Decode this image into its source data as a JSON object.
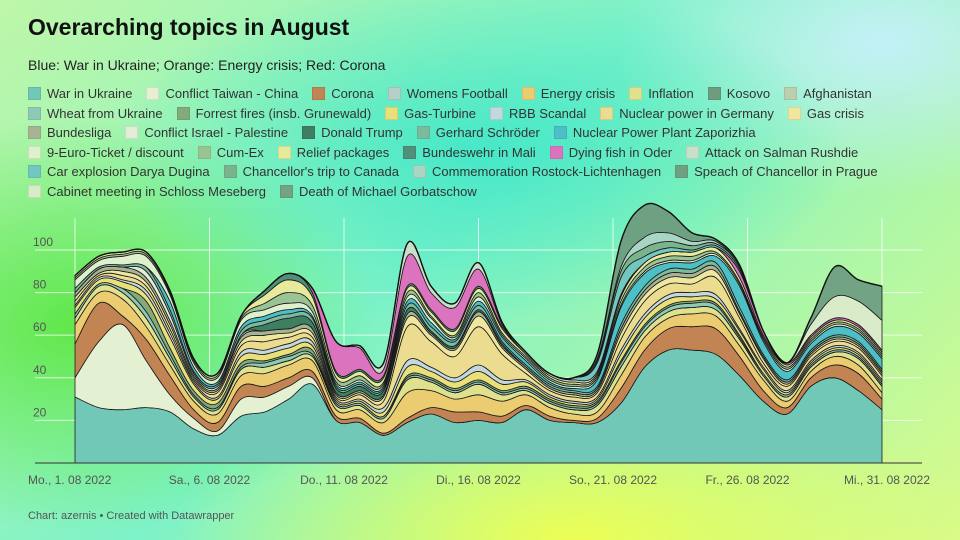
{
  "title": "Overarching topics in August",
  "subtitle": "Blue: War in Ukraine; Orange: Energy crisis; Red: Corona",
  "source": "Chart: azernis • Created with Datawrapper",
  "chart_data": {
    "type": "area",
    "stacked": true,
    "x_labels": [
      "Mo., 1. 08 2022",
      "Sa., 6. 08 2022",
      "Do., 11. 08 2022",
      "Di., 16. 08 2022",
      "So., 21. 08 2022",
      "Fr., 26. 08 2022",
      "Mi., 31. 08 2022"
    ],
    "y_ticks": [
      20,
      40,
      60,
      80,
      100
    ],
    "ylim": [
      0,
      115
    ],
    "grid": true,
    "legend_position": "top",
    "series": [
      {
        "name": "War in Ukraine",
        "color": "#72c8b6",
        "values": [
          31,
          26,
          25,
          26,
          24,
          16,
          13,
          22,
          24,
          30,
          37,
          20,
          19,
          13,
          19,
          23,
          19,
          20,
          19,
          25,
          20,
          19,
          19,
          28,
          45,
          53,
          53,
          51,
          41,
          29,
          23,
          36,
          40,
          34,
          25
        ]
      },
      {
        "name": "Conflict Taiwan - China",
        "color": "#e4f0d2",
        "values": [
          9,
          31,
          40,
          22,
          8,
          5,
          2,
          8,
          7,
          6,
          3,
          0,
          0,
          0,
          0,
          0,
          0,
          0,
          0,
          0,
          0,
          0,
          0,
          0,
          0,
          0,
          0,
          0,
          0,
          0,
          0,
          0,
          0,
          0,
          0
        ]
      },
      {
        "name": "Corona",
        "color": "#c38454",
        "values": [
          16,
          18,
          4,
          10,
          9,
          4,
          4,
          6,
          5,
          4,
          3,
          2,
          2,
          1,
          2,
          3,
          5,
          4,
          3,
          2,
          2,
          1,
          2,
          7,
          8,
          10,
          11,
          12,
          9,
          5,
          3,
          4,
          6,
          8,
          5
        ]
      },
      {
        "name": "Womens Football",
        "color": "#b5cfc9",
        "values": [
          0,
          0,
          0,
          0,
          0,
          0,
          0,
          0,
          0,
          0,
          0,
          0,
          0,
          0,
          0,
          0,
          0,
          0,
          0,
          0,
          0,
          0,
          0,
          0,
          0,
          0,
          0,
          0,
          0,
          0,
          0,
          0,
          0,
          0,
          0
        ]
      },
      {
        "name": "Energy crisis",
        "color": "#eccc70",
        "values": [
          9,
          5,
          8,
          6,
          5,
          4,
          4,
          5,
          6,
          6,
          5,
          3,
          4,
          5,
          12,
          8,
          6,
          8,
          7,
          5,
          4,
          3,
          3,
          6,
          6,
          5,
          6,
          6,
          5,
          5,
          3,
          3,
          4,
          4,
          3
        ]
      },
      {
        "name": "Inflation",
        "color": "#dfe18e",
        "values": [
          3,
          3,
          3,
          4,
          3,
          2,
          2,
          3,
          3,
          2,
          2,
          2,
          2,
          2,
          6,
          4,
          3,
          5,
          3,
          2,
          2,
          2,
          3,
          4,
          3,
          3,
          3,
          3,
          3,
          2,
          2,
          2,
          2,
          3,
          3
        ]
      },
      {
        "name": "Kosovo",
        "color": "#6e9d7d",
        "values": [
          0,
          0,
          0,
          0,
          0,
          0,
          0,
          0,
          0,
          0,
          0,
          0,
          0,
          0,
          0,
          0,
          0,
          0,
          0,
          0,
          0,
          0,
          0,
          0,
          0,
          0,
          0,
          0,
          0,
          0,
          0,
          0,
          0,
          0,
          0
        ]
      },
      {
        "name": "Afghanistan",
        "color": "#b9cfae",
        "values": [
          0,
          0,
          0,
          0,
          0,
          0,
          0,
          0,
          0,
          0,
          0,
          0,
          0,
          0,
          0,
          0,
          0,
          0,
          0,
          0,
          0,
          0,
          0,
          0,
          0,
          0,
          0,
          0,
          0,
          0,
          0,
          0,
          0,
          0,
          0
        ]
      },
      {
        "name": "Wheat from Ukraine",
        "color": "#8ccab5",
        "values": [
          2,
          1,
          2,
          3,
          2,
          1,
          1,
          1,
          2,
          2,
          1,
          1,
          1,
          1,
          1,
          1,
          1,
          1,
          1,
          1,
          1,
          1,
          1,
          2,
          2,
          2,
          2,
          2,
          1,
          1,
          1,
          1,
          1,
          1,
          1
        ]
      },
      {
        "name": "Forrest fires (insb. Grunewald)",
        "color": "#82aa7a",
        "values": [
          0,
          0,
          0,
          5,
          3,
          2,
          2,
          2,
          1,
          1,
          2,
          0,
          0,
          0,
          1,
          1,
          1,
          1,
          1,
          1,
          1,
          1,
          1,
          1,
          1,
          1,
          1,
          1,
          1,
          0,
          0,
          0,
          0,
          0,
          0
        ]
      },
      {
        "name": "Gas-Turbine",
        "color": "#e9e07c",
        "values": [
          3,
          2,
          3,
          3,
          5,
          3,
          2,
          3,
          3,
          3,
          2,
          1,
          1,
          2,
          4,
          3,
          3,
          4,
          3,
          2,
          1,
          1,
          1,
          3,
          3,
          3,
          2,
          2,
          2,
          2,
          1,
          1,
          1,
          1,
          1
        ]
      },
      {
        "name": "RBB Scandal",
        "color": "#c3d8dc",
        "values": [
          1,
          1,
          1,
          2,
          2,
          1,
          1,
          2,
          2,
          2,
          2,
          1,
          1,
          2,
          3,
          2,
          2,
          3,
          2,
          1,
          1,
          1,
          1,
          2,
          2,
          2,
          2,
          2,
          1,
          1,
          1,
          1,
          1,
          1,
          1
        ]
      },
      {
        "name": "Nuclear power in Germany",
        "color": "#ecdc8f",
        "values": [
          2,
          1,
          2,
          2,
          2,
          1,
          2,
          3,
          4,
          3,
          2,
          1,
          2,
          3,
          16,
          12,
          10,
          18,
          12,
          3,
          2,
          2,
          2,
          5,
          6,
          5,
          4,
          8,
          5,
          2,
          2,
          2,
          2,
          2,
          2
        ]
      },
      {
        "name": "Gas crisis",
        "color": "#efe7a0",
        "values": [
          2,
          1,
          2,
          2,
          2,
          1,
          1,
          2,
          3,
          2,
          2,
          1,
          1,
          2,
          4,
          3,
          3,
          5,
          3,
          2,
          1,
          1,
          1,
          3,
          3,
          3,
          3,
          3,
          2,
          2,
          1,
          1,
          1,
          1,
          1
        ]
      },
      {
        "name": "Bundesliga",
        "color": "#a6b494",
        "values": [
          2,
          2,
          2,
          2,
          2,
          1,
          1,
          2,
          2,
          2,
          2,
          1,
          1,
          1,
          2,
          1,
          1,
          2,
          1,
          1,
          1,
          1,
          1,
          2,
          2,
          2,
          2,
          2,
          1,
          1,
          1,
          1,
          1,
          1,
          1
        ]
      },
      {
        "name": "Conflict Israel - Palestine",
        "color": "#e2ecd8",
        "values": [
          0,
          0,
          0,
          3,
          3,
          1,
          1,
          1,
          0,
          0,
          0,
          0,
          0,
          0,
          0,
          0,
          0,
          0,
          0,
          0,
          0,
          0,
          0,
          0,
          0,
          0,
          0,
          0,
          0,
          0,
          0,
          0,
          0,
          0,
          0
        ]
      },
      {
        "name": "Donald Trump",
        "color": "#3d7f60",
        "values": [
          0,
          0,
          0,
          0,
          0,
          0,
          0,
          0,
          3,
          5,
          3,
          2,
          2,
          2,
          2,
          1,
          1,
          1,
          1,
          0,
          0,
          0,
          0,
          0,
          0,
          0,
          0,
          0,
          0,
          0,
          0,
          0,
          0,
          0,
          0
        ]
      },
      {
        "name": "Gerhard Schröder",
        "color": "#7cba9d",
        "values": [
          2,
          1,
          1,
          2,
          2,
          1,
          1,
          2,
          2,
          2,
          2,
          1,
          1,
          1,
          2,
          2,
          2,
          2,
          1,
          1,
          1,
          1,
          1,
          2,
          2,
          2,
          2,
          2,
          2,
          1,
          1,
          1,
          1,
          1,
          1
        ]
      },
      {
        "name": "Nuclear Power Plant Zaporizhia",
        "color": "#4cc0c6",
        "values": [
          0,
          0,
          0,
          0,
          4,
          2,
          1,
          2,
          2,
          2,
          1,
          1,
          1,
          1,
          2,
          2,
          1,
          2,
          2,
          2,
          1,
          1,
          3,
          8,
          6,
          3,
          3,
          3,
          10,
          6,
          4,
          3,
          4,
          4,
          5
        ]
      },
      {
        "name": "9-Euro-Ticket / discount",
        "color": "#dff0cc",
        "values": [
          4,
          3,
          4,
          5,
          3,
          2,
          2,
          3,
          3,
          3,
          2,
          1,
          1,
          1,
          2,
          2,
          1,
          2,
          1,
          1,
          1,
          1,
          1,
          1,
          1,
          1,
          1,
          1,
          1,
          1,
          1,
          1,
          1,
          1,
          1
        ]
      },
      {
        "name": "Cum-Ex",
        "color": "#9bc494",
        "values": [
          1,
          1,
          1,
          1,
          1,
          1,
          1,
          1,
          3,
          5,
          3,
          2,
          2,
          1,
          2,
          1,
          1,
          2,
          1,
          1,
          1,
          1,
          1,
          2,
          2,
          2,
          2,
          1,
          1,
          1,
          1,
          1,
          1,
          1,
          1
        ]
      },
      {
        "name": "Relief packages",
        "color": "#e6ea9a",
        "values": [
          1,
          1,
          1,
          1,
          1,
          1,
          1,
          1,
          4,
          6,
          4,
          2,
          2,
          2,
          2,
          2,
          2,
          2,
          2,
          1,
          1,
          1,
          1,
          2,
          2,
          2,
          2,
          2,
          2,
          1,
          1,
          1,
          1,
          1,
          1
        ]
      },
      {
        "name": "Bundeswehr in Mali",
        "color": "#50907a",
        "values": [
          0,
          0,
          0,
          0,
          0,
          0,
          0,
          0,
          2,
          3,
          2,
          1,
          1,
          1,
          1,
          1,
          1,
          1,
          1,
          0,
          0,
          0,
          0,
          0,
          0,
          0,
          0,
          0,
          0,
          0,
          0,
          0,
          0,
          0,
          0
        ]
      },
      {
        "name": "Dying fish in Oder",
        "color": "#dc73bf",
        "values": [
          0,
          0,
          0,
          0,
          0,
          0,
          0,
          0,
          0,
          0,
          2,
          14,
          10,
          3,
          14,
          8,
          10,
          8,
          1,
          0,
          0,
          0,
          0,
          0,
          0,
          0,
          0,
          0,
          3,
          2,
          1,
          1,
          1,
          1,
          1
        ]
      },
      {
        "name": "Attack on Salman Rushdie",
        "color": "#c8dfca",
        "values": [
          0,
          0,
          0,
          0,
          0,
          0,
          0,
          0,
          0,
          0,
          0,
          0,
          1,
          3,
          6,
          3,
          2,
          3,
          1,
          1,
          1,
          1,
          1,
          1,
          0,
          0,
          0,
          0,
          0,
          0,
          0,
          0,
          0,
          0,
          0
        ]
      },
      {
        "name": "Car explosion Darya Dugina",
        "color": "#72c8c0",
        "values": [
          0,
          0,
          0,
          0,
          0,
          0,
          0,
          0,
          0,
          0,
          0,
          0,
          0,
          0,
          0,
          0,
          0,
          0,
          0,
          0,
          0,
          1,
          4,
          8,
          3,
          2,
          1,
          1,
          1,
          0,
          0,
          0,
          0,
          0,
          0
        ]
      },
      {
        "name": "Chancellor's trip to Canada",
        "color": "#7ab48c",
        "values": [
          0,
          0,
          0,
          0,
          0,
          0,
          0,
          0,
          0,
          0,
          0,
          0,
          0,
          0,
          0,
          0,
          0,
          0,
          0,
          0,
          0,
          0,
          1,
          3,
          4,
          3,
          2,
          1,
          1,
          0,
          0,
          0,
          0,
          0,
          0
        ]
      },
      {
        "name": "Commemoration Rostock-Lichtenhagen",
        "color": "#a8d5c4",
        "values": [
          0,
          0,
          0,
          0,
          0,
          0,
          0,
          0,
          0,
          0,
          0,
          0,
          0,
          0,
          0,
          0,
          0,
          0,
          0,
          0,
          0,
          0,
          1,
          2,
          5,
          4,
          2,
          1,
          0,
          0,
          0,
          0,
          0,
          0,
          0
        ]
      },
      {
        "name": "Speach of Chancellor in Prague",
        "color": "#6ea182",
        "values": [
          0,
          0,
          0,
          0,
          0,
          0,
          0,
          0,
          0,
          0,
          0,
          0,
          0,
          0,
          0,
          0,
          0,
          0,
          0,
          0,
          0,
          0,
          2,
          12,
          15,
          10,
          4,
          1,
          1,
          0,
          0,
          0,
          0,
          0,
          0
        ]
      },
      {
        "name": "Cabinet meeting in Schloss Meseberg",
        "color": "#d9ebc9",
        "values": [
          0,
          0,
          0,
          0,
          0,
          0,
          0,
          0,
          0,
          0,
          0,
          0,
          0,
          0,
          0,
          0,
          0,
          0,
          0,
          0,
          0,
          0,
          0,
          0,
          0,
          0,
          0,
          0,
          0,
          0,
          0,
          5,
          10,
          11,
          14
        ]
      },
      {
        "name": "Death of Michael Gorbatschow",
        "color": "#72a484",
        "values": [
          0,
          0,
          0,
          0,
          0,
          0,
          0,
          0,
          0,
          0,
          0,
          0,
          0,
          0,
          0,
          0,
          0,
          0,
          0,
          0,
          0,
          0,
          0,
          0,
          0,
          0,
          0,
          0,
          0,
          0,
          0,
          3,
          14,
          10,
          16
        ]
      }
    ]
  }
}
